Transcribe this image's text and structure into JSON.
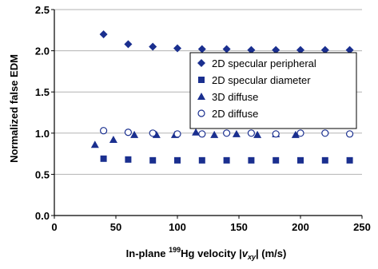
{
  "chart_data": {
    "type": "scatter",
    "xlabel_prefix": "In-plane ",
    "xlabel_isotope": "199",
    "xlabel_element": "Hg velocity |",
    "xlabel_var": "v",
    "xlabel_sub": "xy",
    "xlabel_suffix": "| (m/s)",
    "ylabel": "Normalized false EDM",
    "xlim": [
      0,
      250
    ],
    "ylim": [
      0,
      2.5
    ],
    "xticks": [
      "0",
      "50",
      "100",
      "150",
      "200",
      "250"
    ],
    "yticks": [
      "0.0",
      "0.5",
      "1.0",
      "1.5",
      "2.0",
      "2.5"
    ],
    "grid": "horizontal",
    "legend_position": "right",
    "marker_color": "#1a2f8f",
    "series": [
      {
        "name": "2D specular peripheral",
        "marker": "diamond",
        "x": [
          40,
          60,
          80,
          100,
          120,
          140,
          160,
          180,
          200,
          220,
          240
        ],
        "y": [
          2.2,
          2.08,
          2.05,
          2.03,
          2.02,
          2.02,
          2.01,
          2.01,
          2.01,
          2.01,
          2.01
        ]
      },
      {
        "name": "2D specular diameter",
        "marker": "square",
        "x": [
          40,
          60,
          80,
          100,
          120,
          140,
          160,
          180,
          200,
          220,
          240
        ],
        "y": [
          0.69,
          0.68,
          0.67,
          0.67,
          0.67,
          0.67,
          0.67,
          0.67,
          0.67,
          0.67,
          0.67
        ]
      },
      {
        "name": "3D diffuse",
        "marker": "triangle",
        "x": [
          33,
          48,
          65,
          83,
          98,
          115,
          130,
          148,
          165,
          180,
          196
        ],
        "y": [
          0.86,
          0.92,
          0.98,
          0.98,
          0.98,
          1.01,
          0.98,
          0.99,
          0.98,
          0.99,
          0.98
        ]
      },
      {
        "name": "2D diffuse",
        "marker": "open-circle",
        "x": [
          40,
          60,
          80,
          100,
          120,
          140,
          160,
          180,
          200,
          220,
          240
        ],
        "y": [
          1.03,
          1.01,
          1.0,
          0.99,
          0.99,
          1.0,
          1.0,
          0.99,
          1.0,
          1.0,
          0.99
        ]
      }
    ]
  }
}
